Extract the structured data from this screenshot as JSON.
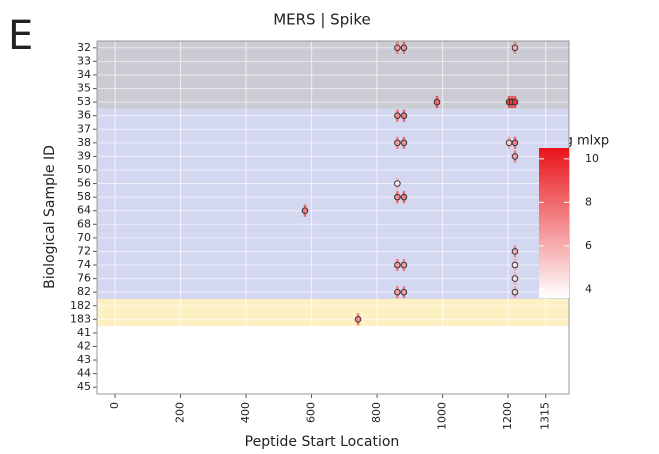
{
  "panel_label": "E",
  "chart_data": {
    "type": "scatter",
    "title": "MERS | Spike",
    "x_label": "Peptide Start Location",
    "y_label": "Biological Sample ID",
    "categories": [
      "32",
      "33",
      "34",
      "35",
      "53",
      "36",
      "37",
      "38",
      "39",
      "50",
      "56",
      "58",
      "64",
      "68",
      "70",
      "72",
      "74",
      "76",
      "82",
      "182",
      "183",
      "41",
      "42",
      "43",
      "44",
      "45"
    ],
    "xlim": [
      -55,
      1386
    ],
    "xticks": [
      0,
      200,
      400,
      600,
      800,
      1000,
      1200,
      1315
    ],
    "grid": true,
    "bands": [
      {
        "from": "32",
        "to": "53",
        "color": "#cbcbd4"
      },
      {
        "from": "36",
        "to": "82",
        "color": "#d3d7f0"
      },
      {
        "from": "182",
        "to": "183",
        "color": "#fdf1c3"
      }
    ],
    "colorbar": {
      "title": "log mlxp",
      "lim": [
        3.6,
        10.5
      ],
      "ticks": [
        4,
        6,
        8,
        10
      ],
      "colorscale": [
        "#ffffff",
        "#e8141a"
      ]
    },
    "points": {
      "x": [
        862,
        882,
        1221,
        983,
        1203,
        1212,
        1221,
        862,
        882,
        862,
        882,
        1203,
        1221,
        1221,
        862,
        862,
        882,
        580,
        1221,
        862,
        882,
        1221,
        1221,
        862,
        882,
        1221,
        742
      ],
      "y": [
        "32",
        "32",
        "32",
        "53",
        "53",
        "53",
        "53",
        "36",
        "36",
        "38",
        "38",
        "38",
        "38",
        "39",
        "56",
        "58",
        "58",
        "64",
        "72",
        "74",
        "74",
        "74",
        "76",
        "82",
        "82",
        "82",
        "183"
      ],
      "values": [
        6.5,
        7,
        6,
        8,
        9,
        9,
        9.5,
        7,
        7.5,
        6.5,
        7,
        5,
        7.5,
        6.5,
        4,
        7,
        7.5,
        7.5,
        6,
        6.5,
        6.5,
        4.5,
        4.5,
        6.5,
        6.5,
        5,
        7
      ]
    }
  }
}
